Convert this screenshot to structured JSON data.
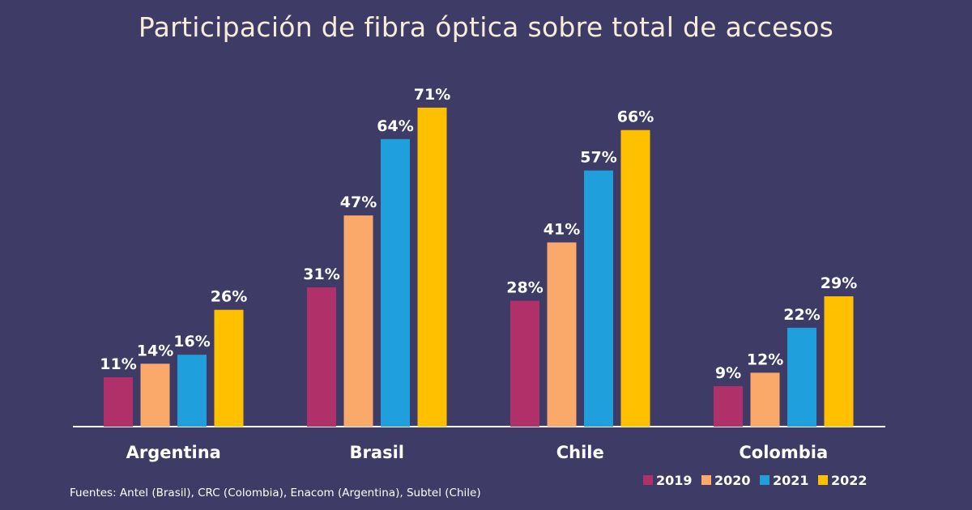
{
  "chart_data": {
    "type": "bar",
    "title": "Participación de fibra óptica sobre total de accesos",
    "categories": [
      "Argentina",
      "Brasil",
      "Chile",
      "Colombia"
    ],
    "series": [
      {
        "name": "2019",
        "color": "#b0306a",
        "values": [
          11,
          31,
          28,
          9
        ],
        "labels": [
          "11%",
          "31%",
          "28%",
          "9%"
        ]
      },
      {
        "name": "2020",
        "color": "#fba86b",
        "values": [
          14,
          47,
          41,
          12
        ],
        "labels": [
          "14%",
          "47%",
          "41%",
          "12%"
        ]
      },
      {
        "name": "2021",
        "color": "#1f9fdc",
        "values": [
          16,
          64,
          57,
          22
        ],
        "labels": [
          "16%",
          "64%",
          "57%",
          "22%"
        ]
      },
      {
        "name": "2022",
        "color": "#ffc000",
        "values": [
          26,
          71,
          66,
          29
        ],
        "labels": [
          "26%",
          "71%",
          "66%",
          "29%"
        ]
      }
    ],
    "ylim": [
      0,
      75
    ],
    "unit": "%",
    "grid": false,
    "legend_position": "bottom-right"
  },
  "source_note": "Fuentes: Antel (Brasil), CRC (Colombia), Enacom (Argentina), Subtel (Chile)",
  "colors": {
    "background": "#3f3b67",
    "title": "#f6ecd9",
    "axis": "#ffffff"
  }
}
